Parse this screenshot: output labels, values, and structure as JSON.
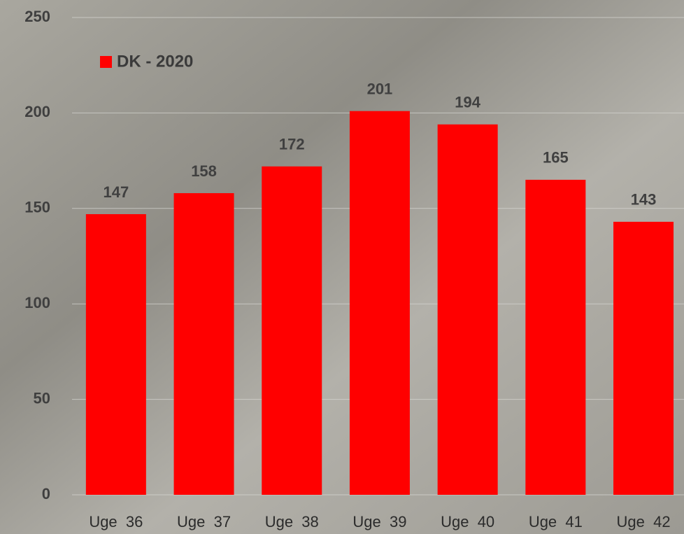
{
  "chart_data": {
    "type": "bar",
    "categories": [
      "Uge  36",
      "Uge  37",
      "Uge  38",
      "Uge  39",
      "Uge  40",
      "Uge  41",
      "Uge  42"
    ],
    "series": [
      {
        "name": "DK - 2020",
        "color": "#ff0000",
        "values": [
          147,
          158,
          172,
          201,
          194,
          165,
          143
        ]
      }
    ],
    "ylim": [
      0,
      250
    ],
    "yticks": [
      0,
      50,
      100,
      150,
      200,
      250
    ],
    "grid": true,
    "legend": "top-left"
  }
}
